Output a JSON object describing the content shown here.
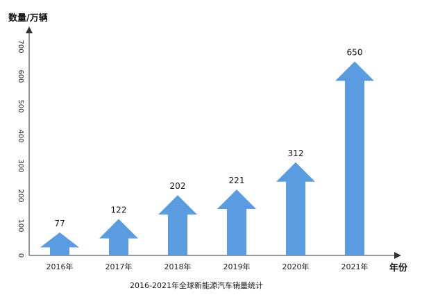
{
  "chart_data": {
    "type": "bar",
    "title": "2016-2021年全球新能源汽车销量统计",
    "xlabel": "年份",
    "ylabel": "数量/万辆",
    "categories": [
      "2016年",
      "2017年",
      "2018年",
      "2019年",
      "2020年",
      "2021年"
    ],
    "values": [
      77,
      122,
      202,
      221,
      312,
      650
    ],
    "data_labels": [
      "77",
      "122",
      "202",
      "221",
      "312",
      "650"
    ],
    "yticks": [
      "0",
      "100",
      "200",
      "300",
      "400",
      "500",
      "600",
      "700"
    ],
    "ylim": [
      0,
      700
    ],
    "mark_shape": "upward arrow",
    "grid": false,
    "legend": "none",
    "colors": {
      "arrow": "#5b9be0",
      "axis": "#333333"
    }
  }
}
